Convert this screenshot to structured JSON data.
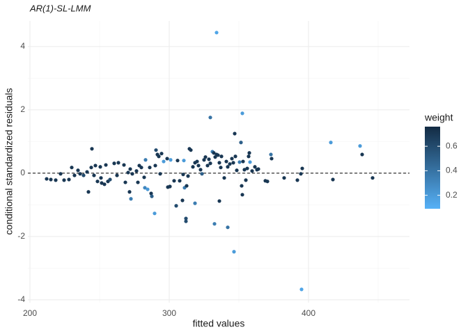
{
  "chart_data": {
    "type": "scatter",
    "title": "AR(1)-SL-LMM",
    "x_label": "fitted values",
    "y_label": "conditional standardized residuals",
    "xlim": [
      198.5,
      472.5
    ],
    "ylim": [
      -4.09,
      4.81
    ],
    "xticks": [
      200,
      300,
      400
    ],
    "yticks": [
      -4,
      -2,
      0,
      2,
      4
    ],
    "x_minor_ticks": [
      250,
      350,
      450
    ],
    "y_minor_ticks": [
      -3,
      -1,
      1,
      3
    ],
    "grid": true,
    "hline": 0,
    "color_legend": {
      "title": "weight",
      "range": [
        0.09,
        0.76
      ],
      "ticks": [
        0.2,
        0.4,
        0.6
      ],
      "low_color": "#56B1F7",
      "high_color": "#132B43"
    },
    "x": [
      212,
      215,
      218.5,
      222,
      224.5,
      228,
      230,
      232,
      234.5,
      236,
      238.5,
      241,
      242,
      244.5,
      244,
      246,
      247,
      248.5,
      250.5,
      251,
      251.5,
      253.5,
      254.5,
      256,
      257.5,
      260.5,
      262.5,
      263.5,
      267.5,
      268.5,
      270.5,
      272,
      273.5,
      271.5,
      272.5,
      276.5,
      277.5,
      278.5,
      280,
      282,
      282.5,
      283,
      284.5,
      286,
      287,
      287.5,
      289.5,
      290,
      290.5,
      291.5,
      292.5,
      293.5,
      294.5,
      296,
      298.5,
      299,
      300.5,
      301,
      303.5,
      305,
      306,
      307.5,
      309.5,
      310,
      310.5,
      311,
      312,
      312,
      312.5,
      313.5,
      314.5,
      315.5,
      317,
      318.5,
      318.5,
      320,
      321,
      322.5,
      323.5,
      325,
      326,
      327.5,
      328.5,
      329.5,
      329.5,
      331,
      332,
      332.5,
      333,
      334,
      334,
      335,
      336,
      336,
      337,
      337.5,
      339.5,
      341,
      342,
      342,
      343.5,
      345,
      346,
      346.5,
      347,
      347.5,
      348.5,
      350.5,
      351.5,
      352,
      352.5,
      352.5,
      353,
      354,
      355,
      356,
      357,
      357.5,
      358,
      359.5,
      361.5,
      363,
      364,
      369,
      370.5,
      373,
      373.5,
      382.5,
      392,
      394.5,
      395.5,
      395,
      416,
      417.5,
      437,
      438.5,
      446
    ],
    "y": [
      -0.18,
      -0.2,
      -0.22,
      -0.02,
      -0.22,
      -0.2,
      0.18,
      -0.07,
      0.09,
      -0.02,
      -0.07,
      0.04,
      -0.59,
      0.77,
      0.18,
      -0.07,
      0.24,
      -0.26,
      0.2,
      -0.15,
      -0.31,
      -0.35,
      0.26,
      -0.26,
      -0.2,
      0.31,
      -0.07,
      0.33,
      0.26,
      -0.29,
      0.02,
      0.13,
      -0.02,
      -0.59,
      -0.81,
      0.07,
      -0.29,
      0.24,
      0.18,
      -0.13,
      -0.46,
      0.42,
      -0.51,
      0.18,
      -0.64,
      -0.73,
      -1.27,
      0.24,
      0.73,
      0.59,
      0.53,
      -0.02,
      0.62,
      0.37,
      0.46,
      -0.44,
      -0.42,
      0.42,
      -0.24,
      -1.03,
      0.4,
      -0.24,
      -0.86,
      -0.04,
      0.4,
      -0.46,
      -1.43,
      -1.52,
      -0.4,
      -0.09,
      0.77,
      0.73,
      0.2,
      -0.95,
      0.33,
      0.37,
      0.24,
      0.11,
      -0.02,
      0.42,
      0.51,
      0.24,
      0.44,
      0.31,
      1.76,
      0.68,
      0.64,
      -1.6,
      0.51,
      4.44,
      0.59,
      0.57,
      -0.88,
      0.33,
      0.18,
      0.53,
      -0.15,
      0.37,
      -1.71,
      0.2,
      0.29,
      0.46,
      0.33,
      -2.48,
      1.25,
      0.53,
      0.09,
      0.35,
      0.97,
      -0.4,
      1.89,
      -0.68,
      0.37,
      0.11,
      -0.22,
      0.15,
      0.53,
      0.64,
      0.35,
      0.07,
      0.2,
      0.11,
      0.13,
      -0.24,
      -0.26,
      0.59,
      0.46,
      -0.15,
      -0.22,
      -0.02,
      0.15,
      -3.67,
      0.97,
      -0.2,
      0.86,
      0.59,
      -0.15
    ],
    "weight": [
      0.7,
      0.7,
      0.7,
      0.7,
      0.7,
      0.7,
      0.7,
      0.7,
      0.7,
      0.7,
      0.6,
      0.7,
      0.7,
      0.7,
      0.7,
      0.7,
      0.7,
      0.7,
      0.7,
      0.7,
      0.7,
      0.7,
      0.7,
      0.7,
      0.6,
      0.7,
      0.7,
      0.7,
      0.7,
      0.7,
      0.7,
      0.7,
      0.7,
      0.7,
      0.35,
      0.7,
      0.7,
      0.7,
      0.7,
      0.7,
      0.3,
      0.35,
      0.2,
      0.7,
      0.7,
      0.5,
      0.2,
      0.7,
      0.6,
      0.7,
      0.7,
      0.7,
      0.7,
      0.2,
      0.7,
      0.7,
      0.7,
      0.2,
      0.7,
      0.6,
      0.7,
      0.7,
      0.7,
      0.7,
      0.2,
      0.35,
      0.6,
      0.6,
      0.7,
      0.7,
      0.7,
      0.7,
      0.7,
      0.35,
      0.7,
      0.7,
      0.7,
      0.7,
      0.5,
      0.7,
      0.7,
      0.7,
      0.7,
      0.7,
      0.4,
      0.35,
      0.7,
      0.35,
      0.7,
      0.15,
      0.7,
      0.7,
      0.7,
      0.7,
      0.7,
      0.7,
      0.7,
      0.7,
      0.4,
      0.7,
      0.7,
      0.7,
      0.7,
      0.2,
      0.7,
      0.7,
      0.7,
      0.35,
      0.5,
      0.7,
      0.2,
      0.7,
      0.7,
      0.7,
      0.7,
      0.7,
      0.7,
      0.7,
      0.2,
      0.7,
      0.7,
      0.7,
      0.7,
      0.7,
      0.7,
      0.4,
      0.7,
      0.7,
      0.7,
      0.7,
      0.7,
      0.15,
      0.2,
      0.7,
      0.2,
      0.7,
      0.7
    ]
  }
}
